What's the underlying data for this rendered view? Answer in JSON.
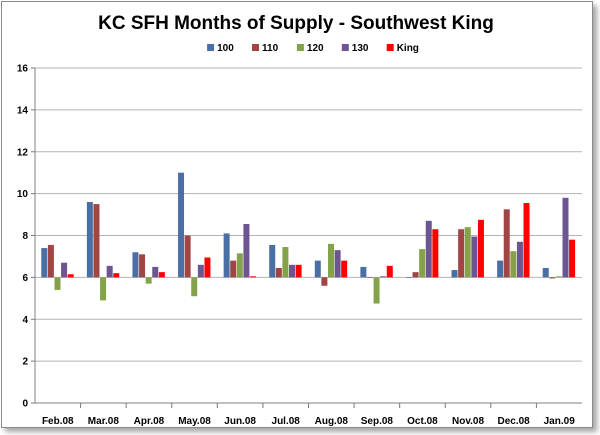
{
  "chart_data": {
    "type": "bar",
    "title": "KC SFH Months of Supply - Southwest King",
    "xlabel": "",
    "ylabel": "",
    "ylim": [
      0,
      16
    ],
    "yticks": [
      0,
      2,
      4,
      6,
      8,
      10,
      12,
      14,
      16
    ],
    "baseline": 6,
    "grid": "horizontal",
    "legend": "top",
    "categories": [
      "Feb.08",
      "Mar.08",
      "Apr.08",
      "May.08",
      "Jun.08",
      "Jul.08",
      "Aug.08",
      "Sep.08",
      "Oct.08",
      "Nov.08",
      "Dec.08",
      "Jan.09"
    ],
    "series": [
      {
        "name": "100",
        "color": "#4a6fa5",
        "values": [
          7.4,
          9.6,
          7.2,
          11.0,
          8.1,
          7.55,
          6.8,
          6.5,
          6.0,
          6.35,
          6.8,
          6.45
        ]
      },
      {
        "name": "110",
        "color": "#a04444",
        "values": [
          7.55,
          9.5,
          7.1,
          8.0,
          6.8,
          6.45,
          5.6,
          6.0,
          6.25,
          8.3,
          9.25,
          5.95
        ]
      },
      {
        "name": "120",
        "color": "#84a24a",
        "values": [
          5.4,
          4.9,
          5.7,
          5.1,
          7.15,
          7.45,
          7.6,
          4.75,
          7.35,
          8.4,
          7.25,
          6.05
        ]
      },
      {
        "name": "130",
        "color": "#6c5591",
        "values": [
          6.7,
          6.55,
          6.5,
          6.6,
          8.55,
          6.6,
          7.3,
          6.05,
          8.7,
          7.95,
          7.7,
          9.8
        ]
      },
      {
        "name": "King",
        "color": "#ff0000",
        "values": [
          6.15,
          6.2,
          6.25,
          6.95,
          6.05,
          6.6,
          6.8,
          6.55,
          8.3,
          8.75,
          9.55,
          7.8
        ]
      }
    ]
  }
}
